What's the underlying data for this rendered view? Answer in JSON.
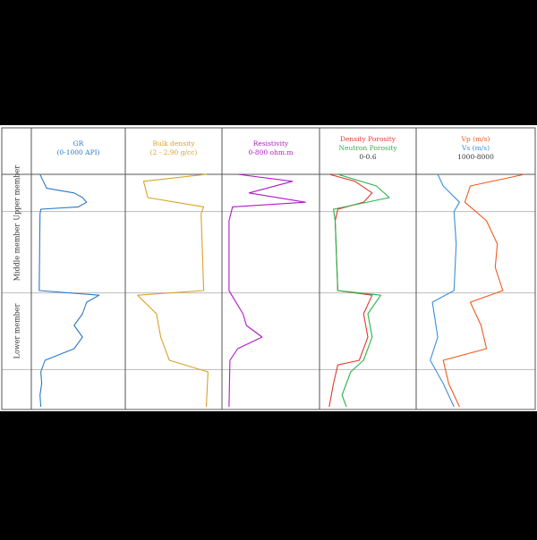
{
  "colors": {
    "background": "#000000",
    "panel": "#ffffff",
    "grid": "#bbbbbb",
    "border": "#555555",
    "label": "#333333",
    "gr": "#2a78c8",
    "density": "#d9a228",
    "resistivity": "#b019c8",
    "density_porosity": "#e03a2c",
    "neutron_porosity": "#2bb24a",
    "vp": "#ee5a1f",
    "vs": "#3a8fd8"
  },
  "chart_data": {
    "type": "line",
    "zones": [
      {
        "label": "Upper member",
        "depth_range": [
          0,
          0.16
        ]
      },
      {
        "label": "Middle member",
        "depth_range": [
          0.16,
          0.51
        ]
      },
      {
        "label": "Lower member",
        "depth_range": [
          0.51,
          0.84
        ]
      },
      {
        "label": "",
        "depth_range": [
          0.84,
          1
        ]
      }
    ],
    "tracks": [
      {
        "title_lines": [
          "GR",
          "(0-1000 API)"
        ],
        "title_colors": [
          "gr",
          "gr"
        ],
        "series": [
          {
            "color": "gr",
            "points": [
              [
                0,
                0.04
              ],
              [
                0.03,
                0.08
              ],
              [
                0.06,
                0.12
              ],
              [
                0.08,
                0.45
              ],
              [
                0.1,
                0.55
              ],
              [
                0.12,
                0.6
              ],
              [
                0.14,
                0.5
              ],
              [
                0.15,
                0.05
              ],
              [
                0.17,
                0.04
              ],
              [
                0.5,
                0.03
              ],
              [
                0.52,
                0.75
              ],
              [
                0.55,
                0.6
              ],
              [
                0.6,
                0.55
              ],
              [
                0.65,
                0.45
              ],
              [
                0.7,
                0.55
              ],
              [
                0.75,
                0.45
              ],
              [
                0.8,
                0.1
              ],
              [
                0.85,
                0.05
              ],
              [
                0.9,
                0.06
              ],
              [
                0.95,
                0.04
              ],
              [
                1,
                0.05
              ]
            ]
          }
        ]
      },
      {
        "title_lines": [
          "Bulk density",
          "(2 - 2.90 g/cc)"
        ],
        "title_colors": [
          "density",
          "density"
        ],
        "series": [
          {
            "color": "density",
            "points": [
              [
                0,
                0.88
              ],
              [
                0.03,
                0.15
              ],
              [
                0.1,
                0.2
              ],
              [
                0.14,
                0.85
              ],
              [
                0.17,
                0.82
              ],
              [
                0.5,
                0.85
              ],
              [
                0.52,
                0.08
              ],
              [
                0.6,
                0.3
              ],
              [
                0.7,
                0.35
              ],
              [
                0.8,
                0.45
              ],
              [
                0.85,
                0.9
              ],
              [
                1,
                0.88
              ]
            ]
          }
        ]
      },
      {
        "title_lines": [
          "Resistivity",
          "0-800 ohm.m"
        ],
        "title_colors": [
          "resistivity",
          "resistivity"
        ],
        "series": [
          {
            "color": "resistivity",
            "points": [
              [
                0,
                0.12
              ],
              [
                0.03,
                0.75
              ],
              [
                0.08,
                0.25
              ],
              [
                0.12,
                0.9
              ],
              [
                0.14,
                0.06
              ],
              [
                0.2,
                0.02
              ],
              [
                0.5,
                0.02
              ],
              [
                0.52,
                0.05
              ],
              [
                0.6,
                0.18
              ],
              [
                0.65,
                0.22
              ],
              [
                0.7,
                0.4
              ],
              [
                0.75,
                0.12
              ],
              [
                0.8,
                0.03
              ],
              [
                1,
                0.02
              ]
            ]
          }
        ]
      },
      {
        "title_lines": [
          "Density Porosity",
          "Neutron Porosity",
          "0-0.6"
        ],
        "title_colors": [
          "density_porosity",
          "neutron_porosity",
          "label"
        ],
        "series": [
          {
            "color": "density_porosity",
            "points": [
              [
                0,
                0.05
              ],
              [
                0.03,
                0.35
              ],
              [
                0.08,
                0.55
              ],
              [
                0.12,
                0.45
              ],
              [
                0.15,
                0.15
              ],
              [
                0.2,
                0.12
              ],
              [
                0.5,
                0.15
              ],
              [
                0.52,
                0.55
              ],
              [
                0.6,
                0.45
              ],
              [
                0.7,
                0.5
              ],
              [
                0.8,
                0.4
              ],
              [
                0.82,
                0.15
              ],
              [
                0.9,
                0.1
              ],
              [
                1,
                0.05
              ]
            ]
          },
          {
            "color": "neutron_porosity",
            "points": [
              [
                0,
                0.15
              ],
              [
                0.05,
                0.6
              ],
              [
                0.1,
                0.75
              ],
              [
                0.15,
                0.1
              ],
              [
                0.2,
                0.12
              ],
              [
                0.5,
                0.15
              ],
              [
                0.52,
                0.65
              ],
              [
                0.6,
                0.5
              ],
              [
                0.7,
                0.55
              ],
              [
                0.8,
                0.45
              ],
              [
                0.85,
                0.3
              ],
              [
                0.95,
                0.2
              ],
              [
                1,
                0.25
              ]
            ]
          }
        ]
      },
      {
        "title_lines": [
          "Vp (m/s)",
          "Vs (m/s)",
          "1000-8000"
        ],
        "title_colors": [
          "vp",
          "vs",
          "label"
        ],
        "series": [
          {
            "color": "vp",
            "points": [
              [
                0,
                0.95
              ],
              [
                0.05,
                0.45
              ],
              [
                0.12,
                0.4
              ],
              [
                0.16,
                0.5
              ],
              [
                0.2,
                0.6
              ],
              [
                0.3,
                0.7
              ],
              [
                0.4,
                0.68
              ],
              [
                0.5,
                0.75
              ],
              [
                0.55,
                0.45
              ],
              [
                0.65,
                0.55
              ],
              [
                0.75,
                0.6
              ],
              [
                0.8,
                0.2
              ],
              [
                0.9,
                0.25
              ],
              [
                1,
                0.35
              ]
            ]
          },
          {
            "color": "vs",
            "points": [
              [
                0,
                0.15
              ],
              [
                0.05,
                0.2
              ],
              [
                0.12,
                0.35
              ],
              [
                0.16,
                0.3
              ],
              [
                0.3,
                0.32
              ],
              [
                0.5,
                0.3
              ],
              [
                0.55,
                0.1
              ],
              [
                0.7,
                0.15
              ],
              [
                0.8,
                0.08
              ],
              [
                0.9,
                0.2
              ],
              [
                1,
                0.3
              ]
            ]
          }
        ]
      }
    ]
  }
}
